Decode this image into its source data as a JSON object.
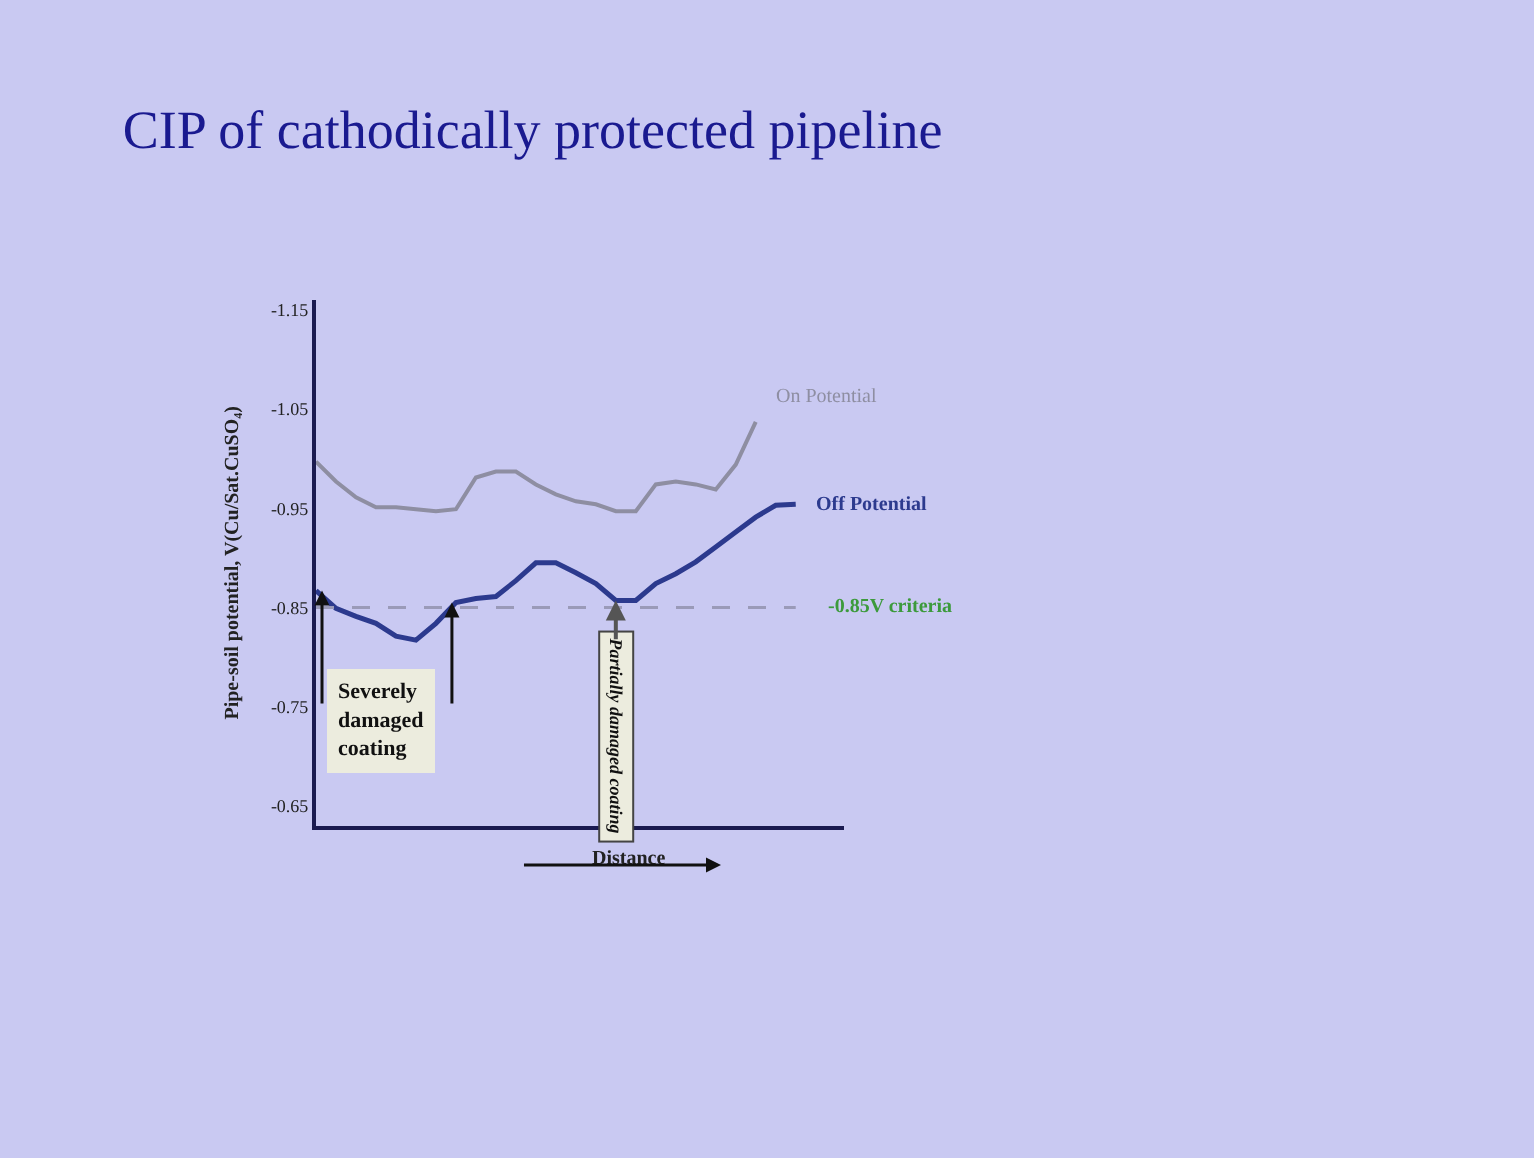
{
  "chart_data": {
    "type": "line",
    "title": "CIP of cathodically protected pipeline",
    "xlabel": "Distance",
    "ylabel": "Pipe-soil potential, V(Cu/Sat.CuSO₄)",
    "categories": [
      null,
      null,
      null,
      null,
      null,
      null,
      null,
      null,
      null,
      null,
      null,
      null,
      null,
      null,
      null,
      null,
      null,
      null,
      null,
      null,
      null,
      null,
      null,
      null,
      null
    ],
    "series": [
      {
        "name": "On Potential",
        "color": "#8e8ea2",
        "values": [
          -0.997,
          -0.977,
          -0.961,
          -0.951,
          -0.951,
          -0.949,
          -0.947,
          -0.949,
          -0.981,
          -0.987,
          -0.987,
          -0.974,
          -0.964,
          -0.957,
          -0.954,
          -0.947,
          -0.947,
          -0.974,
          -0.977,
          -0.974,
          -0.969,
          -0.994,
          -1.037,
          null,
          null
        ]
      },
      {
        "name": "Off Potential",
        "color": "#2c3a8e",
        "values": [
          -0.867,
          -0.849,
          -0.841,
          -0.834,
          -0.821,
          -0.817,
          -0.834,
          -0.855,
          -0.859,
          -0.861,
          -0.877,
          -0.895,
          -0.895,
          -0.885,
          -0.874,
          -0.857,
          -0.857,
          -0.874,
          -0.884,
          -0.896,
          -0.911,
          -0.926,
          -0.941,
          -0.953,
          -0.954
        ]
      }
    ],
    "ylim": [
      -0.63,
      -1.16
    ],
    "yticks": [
      -1.15,
      -1.05,
      -0.95,
      -0.85,
      -0.75,
      -0.65
    ],
    "tick_labels": "y",
    "grid": false,
    "legend": false,
    "marker": "none",
    "line_style": "solid",
    "ref_lines": [
      {
        "axis": "y",
        "value": -0.85,
        "label": "-0.85V criteria",
        "color": "#9a9ab8",
        "line_style": "dashed"
      }
    ],
    "annotations": [
      "Severely damaged coating",
      "Partially damaged coating"
    ]
  }
}
